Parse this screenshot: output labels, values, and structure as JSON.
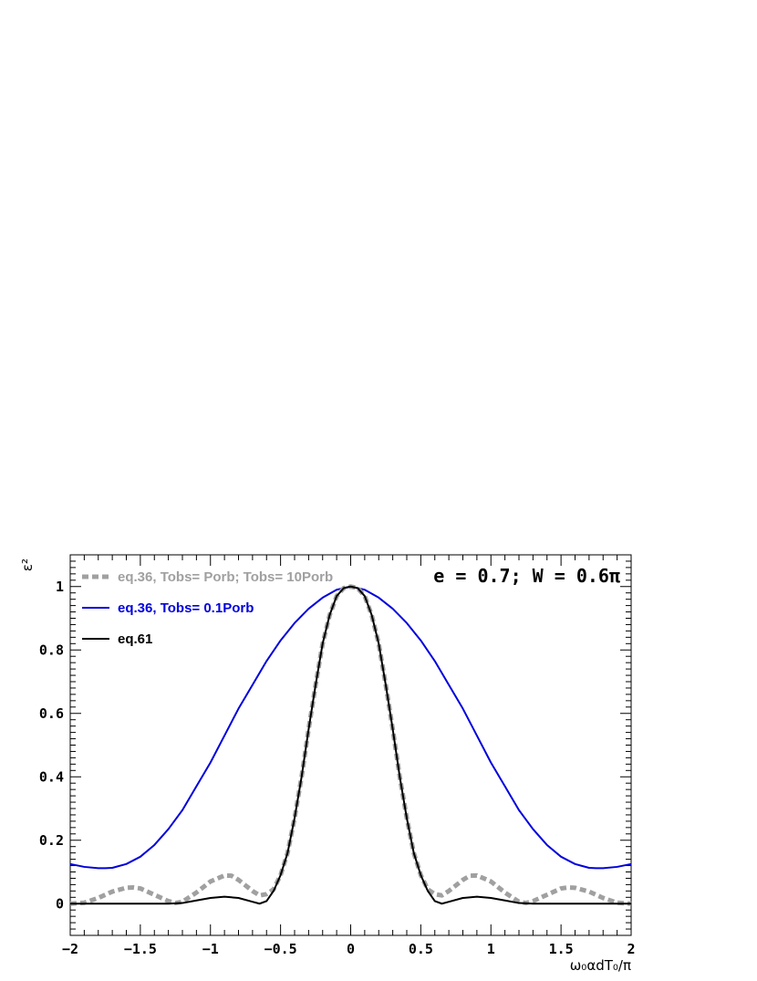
{
  "chart_data": {
    "type": "line",
    "title": "",
    "xlabel": "ω₀αdT₀/π",
    "ylabel": "ε²",
    "xlim": [
      -2,
      2
    ],
    "ylim": [
      -0.1,
      1.1
    ],
    "xticks": [
      -2,
      -1.5,
      -1,
      -0.5,
      0,
      0.5,
      1,
      1.5,
      2
    ],
    "xtick_labels": [
      "−2",
      "−1.5",
      "−1",
      "−0.5",
      "0",
      "0.5",
      "1",
      "1.5",
      "2"
    ],
    "yticks": [
      0,
      0.2,
      0.4,
      0.6,
      0.8,
      1
    ],
    "ytick_labels": [
      "0",
      "0.2",
      "0.4",
      "0.6",
      "0.8",
      "1"
    ],
    "grid": false,
    "legend_position": "top-left",
    "annotation": "e = 0.7; W = 0.6π",
    "series": [
      {
        "legend_label": "eq.36, Tobs= Porb; Tobs= 10Porb",
        "color": "#a0a0a0",
        "style": "dashed-thick",
        "x": [
          -2,
          -1.9,
          -1.8,
          -1.7,
          -1.6,
          -1.55,
          -1.5,
          -1.4,
          -1.3,
          -1.25,
          -1.2,
          -1.1,
          -1.0,
          -0.9,
          -0.85,
          -0.8,
          -0.7,
          -0.65,
          -0.6,
          -0.55,
          -0.5,
          -0.45,
          -0.4,
          -0.35,
          -0.3,
          -0.25,
          -0.2,
          -0.15,
          -0.1,
          -0.05,
          0,
          0.05,
          0.1,
          0.15,
          0.2,
          0.25,
          0.3,
          0.35,
          0.4,
          0.45,
          0.5,
          0.55,
          0.6,
          0.65,
          0.7,
          0.8,
          0.85,
          0.9,
          1.0,
          1.1,
          1.2,
          1.25,
          1.3,
          1.4,
          1.5,
          1.55,
          1.6,
          1.7,
          1.8,
          1.9,
          2
        ],
        "y": [
          0.0,
          0.003,
          0.018,
          0.038,
          0.05,
          0.051,
          0.048,
          0.028,
          0.008,
          0.002,
          0.006,
          0.035,
          0.07,
          0.089,
          0.088,
          0.075,
          0.04,
          0.026,
          0.03,
          0.045,
          0.09,
          0.16,
          0.27,
          0.4,
          0.55,
          0.69,
          0.82,
          0.91,
          0.97,
          0.995,
          1.0,
          0.995,
          0.97,
          0.91,
          0.82,
          0.69,
          0.55,
          0.4,
          0.27,
          0.16,
          0.09,
          0.045,
          0.03,
          0.026,
          0.04,
          0.075,
          0.088,
          0.089,
          0.07,
          0.035,
          0.006,
          0.002,
          0.008,
          0.028,
          0.048,
          0.051,
          0.05,
          0.038,
          0.018,
          0.003,
          0.0
        ]
      },
      {
        "legend_label": "eq.36, Tobs= 0.1Porb",
        "color": "#0000dd",
        "style": "solid",
        "x": [
          -2,
          -1.9,
          -1.8,
          -1.75,
          -1.7,
          -1.6,
          -1.5,
          -1.4,
          -1.3,
          -1.2,
          -1.1,
          -1.0,
          -0.9,
          -0.8,
          -0.7,
          -0.6,
          -0.5,
          -0.4,
          -0.3,
          -0.2,
          -0.1,
          0,
          0.1,
          0.2,
          0.3,
          0.4,
          0.5,
          0.6,
          0.7,
          0.8,
          0.9,
          1.0,
          1.1,
          1.2,
          1.3,
          1.4,
          1.5,
          1.6,
          1.7,
          1.75,
          1.8,
          1.9,
          2
        ],
        "y": [
          0.125,
          0.116,
          0.112,
          0.112,
          0.113,
          0.125,
          0.148,
          0.185,
          0.235,
          0.295,
          0.37,
          0.445,
          0.53,
          0.615,
          0.69,
          0.765,
          0.83,
          0.885,
          0.93,
          0.965,
          0.99,
          1.0,
          0.99,
          0.965,
          0.93,
          0.885,
          0.83,
          0.765,
          0.69,
          0.615,
          0.53,
          0.445,
          0.37,
          0.295,
          0.235,
          0.185,
          0.148,
          0.125,
          0.113,
          0.112,
          0.112,
          0.116,
          0.125
        ]
      },
      {
        "legend_label": "eq.61",
        "color": "#000000",
        "style": "solid",
        "x": [
          -2,
          -1.5,
          -1.3,
          -1.2,
          -1.1,
          -1.0,
          -0.9,
          -0.8,
          -0.7,
          -0.65,
          -0.6,
          -0.55,
          -0.5,
          -0.45,
          -0.4,
          -0.35,
          -0.3,
          -0.25,
          -0.2,
          -0.15,
          -0.1,
          -0.05,
          0,
          0.05,
          0.1,
          0.15,
          0.2,
          0.25,
          0.3,
          0.35,
          0.4,
          0.45,
          0.5,
          0.55,
          0.6,
          0.65,
          0.7,
          0.8,
          0.9,
          1.0,
          1.1,
          1.2,
          1.3,
          1.5,
          2
        ],
        "y": [
          0.0,
          0.0,
          0.0,
          0.002,
          0.01,
          0.018,
          0.022,
          0.018,
          0.006,
          0.0,
          0.008,
          0.04,
          0.09,
          0.16,
          0.27,
          0.4,
          0.55,
          0.69,
          0.82,
          0.91,
          0.97,
          0.995,
          1.0,
          0.995,
          0.97,
          0.91,
          0.82,
          0.69,
          0.55,
          0.4,
          0.27,
          0.16,
          0.09,
          0.04,
          0.008,
          0.0,
          0.006,
          0.018,
          0.022,
          0.018,
          0.01,
          0.002,
          0.0,
          0.0,
          0.0
        ]
      }
    ]
  }
}
